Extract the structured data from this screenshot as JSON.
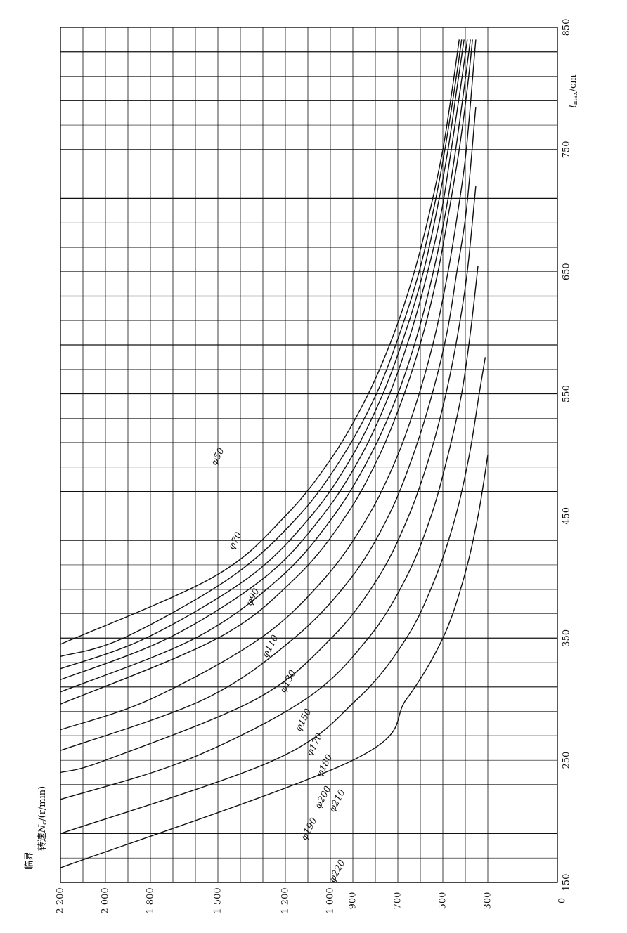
{
  "chart_data": {
    "type": "line",
    "orientation": "rotated-90-counterclockwise",
    "x_axis": {
      "label_main": "l",
      "label_sub": "max",
      "label_unit": "/cm",
      "range": [
        150,
        850
      ],
      "tick_labels": [
        {
          "value": 150,
          "text": "150"
        },
        {
          "value": 250,
          "text": "250"
        },
        {
          "value": 350,
          "text": "350"
        },
        {
          "value": 450,
          "text": "450"
        },
        {
          "value": 550,
          "text": "550"
        },
        {
          "value": 650,
          "text": "650"
        },
        {
          "value": 750,
          "text": "750"
        },
        {
          "value": 850,
          "text": "850"
        }
      ]
    },
    "y_axis": {
      "label_line1": "临界",
      "label_line2_prefix": "转速",
      "label_symbol": "N",
      "label_sub": "c",
      "label_unit": "/(r/min)",
      "origin_label": "0",
      "range": [
        230,
        2200
      ],
      "tick_labels": [
        {
          "value": 2200,
          "text": "2 200"
        },
        {
          "value": 2000,
          "text": "2 000"
        },
        {
          "value": 1800,
          "text": "1 800"
        },
        {
          "value": 1500,
          "text": "1 500"
        },
        {
          "value": 1200,
          "text": "1 200"
        },
        {
          "value": 1000,
          "text": "1 000"
        },
        {
          "value": 900,
          "text": "900"
        },
        {
          "value": 700,
          "text": "700"
        },
        {
          "value": 500,
          "text": "500"
        },
        {
          "value": 300,
          "text": "300"
        }
      ],
      "grid_values": [
        2200,
        2100,
        2000,
        1900,
        1800,
        1700,
        1600,
        1500,
        1400,
        1300,
        1200,
        1100,
        1000,
        900,
        800,
        700,
        600,
        500,
        400,
        300
      ]
    },
    "grid": true,
    "series": [
      {
        "name": "φ50",
        "label": "φ50",
        "label_at": [
          310,
          650
        ],
        "points": [
          [
            162,
            2200
          ],
          [
            250,
            900
          ],
          [
            300,
            660
          ],
          [
            350,
            500
          ],
          [
            400,
            405
          ],
          [
            450,
            340
          ],
          [
            500,
            300
          ]
        ]
      },
      {
        "name": "φ70",
        "label": "φ70",
        "label_at": [
          335,
          770
        ],
        "points": [
          [
            190,
            2200
          ],
          [
            250,
            1250
          ],
          [
            300,
            880
          ],
          [
            350,
            660
          ],
          [
            400,
            530
          ],
          [
            450,
            440
          ],
          [
            500,
            380
          ],
          [
            550,
            335
          ],
          [
            580,
            310
          ]
        ]
      },
      {
        "name": "φ90",
        "label": "φ90",
        "label_at": [
          360,
          850
        ],
        "points": [
          [
            218,
            2200
          ],
          [
            250,
            1640
          ],
          [
            300,
            1110
          ],
          [
            350,
            830
          ],
          [
            400,
            660
          ],
          [
            450,
            550
          ],
          [
            500,
            475
          ],
          [
            550,
            415
          ],
          [
            600,
            375
          ],
          [
            655,
            340
          ]
        ]
      },
      {
        "name": "φ110",
        "label": "φ110",
        "label_at": [
          385,
          920
        ],
        "points": [
          [
            240,
            2200
          ],
          [
            250,
            2000
          ],
          [
            300,
            1330
          ],
          [
            350,
            995
          ],
          [
            400,
            785
          ],
          [
            450,
            650
          ],
          [
            500,
            555
          ],
          [
            550,
            485
          ],
          [
            600,
            430
          ],
          [
            650,
            390
          ],
          [
            720,
            350
          ]
        ]
      },
      {
        "name": "φ130",
        "label": "φ130",
        "label_at": [
          410,
          970
        ],
        "points": [
          [
            258,
            2200
          ],
          [
            300,
            1560
          ],
          [
            350,
            1160
          ],
          [
            400,
            905
          ],
          [
            450,
            740
          ],
          [
            500,
            630
          ],
          [
            550,
            545
          ],
          [
            600,
            480
          ],
          [
            650,
            435
          ],
          [
            700,
            395
          ],
          [
            785,
            350
          ]
        ]
      },
      {
        "name": "φ150",
        "label": "φ150",
        "label_at": [
          432,
          1025
        ],
        "points": [
          [
            275,
            2200
          ],
          [
            300,
            1800
          ],
          [
            350,
            1310
          ],
          [
            400,
            1020
          ],
          [
            450,
            830
          ],
          [
            500,
            700
          ],
          [
            550,
            605
          ],
          [
            600,
            530
          ],
          [
            650,
            475
          ],
          [
            700,
            430
          ],
          [
            750,
            395
          ],
          [
            840,
            350
          ]
        ]
      },
      {
        "name": "φ170",
        "label": "φ170",
        "label_at": [
          448,
          1060
        ],
        "points": [
          [
            296,
            2200
          ],
          [
            350,
            1500
          ],
          [
            400,
            1150
          ],
          [
            450,
            930
          ],
          [
            500,
            780
          ],
          [
            550,
            670
          ],
          [
            600,
            585
          ],
          [
            650,
            520
          ],
          [
            700,
            470
          ],
          [
            750,
            425
          ],
          [
            800,
            390
          ],
          [
            840,
            365
          ]
        ]
      },
      {
        "name": "φ180",
        "label": "φ180",
        "label_at": [
          462,
          1090
        ],
        "points": [
          [
            306,
            2200
          ],
          [
            350,
            1600
          ],
          [
            400,
            1220
          ],
          [
            450,
            985
          ],
          [
            500,
            820
          ],
          [
            550,
            700
          ],
          [
            600,
            610
          ],
          [
            650,
            540
          ],
          [
            700,
            485
          ],
          [
            750,
            440
          ],
          [
            800,
            405
          ],
          [
            840,
            375
          ]
        ]
      },
      {
        "name": "φ190",
        "label": "φ190",
        "label_at": [
          440,
          1180
        ],
        "points": [
          [
            316,
            2200
          ],
          [
            350,
            1720
          ],
          [
            400,
            1290
          ],
          [
            450,
            1035
          ],
          [
            500,
            860
          ],
          [
            550,
            735
          ],
          [
            600,
            640
          ],
          [
            650,
            565
          ],
          [
            700,
            505
          ],
          [
            750,
            460
          ],
          [
            800,
            420
          ],
          [
            840,
            390
          ]
        ]
      },
      {
        "name": "φ200",
        "label": "φ200",
        "label_at": [
          460,
          1135
        ],
        "points": [
          [
            325,
            2200
          ],
          [
            350,
            1820
          ],
          [
            400,
            1360
          ],
          [
            450,
            1085
          ],
          [
            500,
            900
          ],
          [
            550,
            765
          ],
          [
            600,
            665
          ],
          [
            650,
            585
          ],
          [
            700,
            525
          ],
          [
            750,
            475
          ],
          [
            800,
            435
          ],
          [
            840,
            405
          ]
        ]
      },
      {
        "name": "φ210",
        "label": "φ210",
        "label_at": [
          480,
          1140
        ],
        "points": [
          [
            335,
            2200
          ],
          [
            350,
            1920
          ],
          [
            400,
            1440
          ],
          [
            450,
            1140
          ],
          [
            500,
            940
          ],
          [
            550,
            795
          ],
          [
            600,
            690
          ],
          [
            650,
            605
          ],
          [
            700,
            540
          ],
          [
            750,
            490
          ],
          [
            800,
            445
          ],
          [
            840,
            415
          ]
        ]
      },
      {
        "name": "φ220",
        "label": "φ220",
        "label_at": [
          480,
          1240
        ],
        "points": [
          [
            345,
            2200
          ],
          [
            400,
            1520
          ],
          [
            450,
            1200
          ],
          [
            500,
            985
          ],
          [
            550,
            830
          ],
          [
            600,
            715
          ],
          [
            650,
            625
          ],
          [
            700,
            555
          ],
          [
            750,
            500
          ],
          [
            800,
            455
          ],
          [
            840,
            425
          ]
        ]
      }
    ]
  }
}
